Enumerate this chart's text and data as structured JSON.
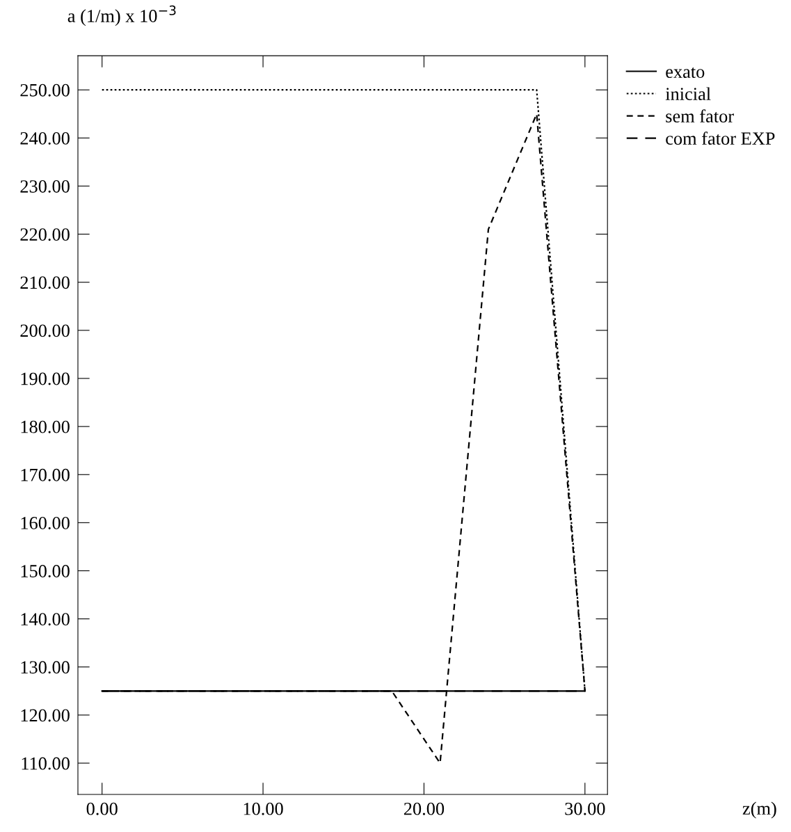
{
  "chart_data": {
    "type": "line",
    "ylabel": "a (1/m) x 10$^{−3}$",
    "annotations": [
      "z(m)"
    ],
    "x": [
      0,
      3,
      6,
      9,
      12,
      15,
      18,
      21,
      24,
      27,
      30
    ],
    "series": [
      {
        "name": "exato",
        "color": "#000000",
        "line_style": "solid",
        "values": [
          125,
          125,
          125,
          125,
          125,
          125,
          125,
          125,
          125,
          125,
          125
        ]
      },
      {
        "name": "inicial",
        "color": "#000000",
        "line_style": "dotted",
        "values": [
          250,
          250,
          250,
          250,
          250,
          250,
          250,
          250,
          250,
          250,
          125
        ]
      },
      {
        "name": "sem fator",
        "color": "#000000",
        "line_style": "dashed",
        "values": [
          125,
          125,
          125,
          125,
          125,
          125,
          125,
          110,
          221,
          245,
          125
        ]
      },
      {
        "name": "com fator EXP",
        "color": "#000000",
        "line_style": "longdash",
        "values": [
          125,
          125,
          125,
          125,
          125,
          125,
          125,
          125,
          125,
          125,
          125
        ]
      }
    ],
    "xlim": [
      -1.5,
      31.4
    ],
    "ylim": [
      103.5,
      257.1
    ],
    "xticks": [
      {
        "value": 0,
        "label": "0.00"
      },
      {
        "value": 10,
        "label": "10.00"
      },
      {
        "value": 20,
        "label": "20.00"
      },
      {
        "value": 30,
        "label": "30.00"
      }
    ],
    "yticks": [
      {
        "value": 110,
        "label": "110.00"
      },
      {
        "value": 120,
        "label": "120.00"
      },
      {
        "value": 130,
        "label": "130.00"
      },
      {
        "value": 140,
        "label": "140.00"
      },
      {
        "value": 150,
        "label": "150.00"
      },
      {
        "value": 160,
        "label": "160.00"
      },
      {
        "value": 170,
        "label": "170.00"
      },
      {
        "value": 180,
        "label": "180.00"
      },
      {
        "value": 190,
        "label": "190.00"
      },
      {
        "value": 200,
        "label": "200.00"
      },
      {
        "value": 210,
        "label": "210.00"
      },
      {
        "value": 220,
        "label": "220.00"
      },
      {
        "value": 230,
        "label": "230.00"
      },
      {
        "value": 240,
        "label": "240.00"
      },
      {
        "value": 250,
        "label": "250.00"
      }
    ],
    "grid": false,
    "legend": "top right",
    "marker": "none"
  }
}
